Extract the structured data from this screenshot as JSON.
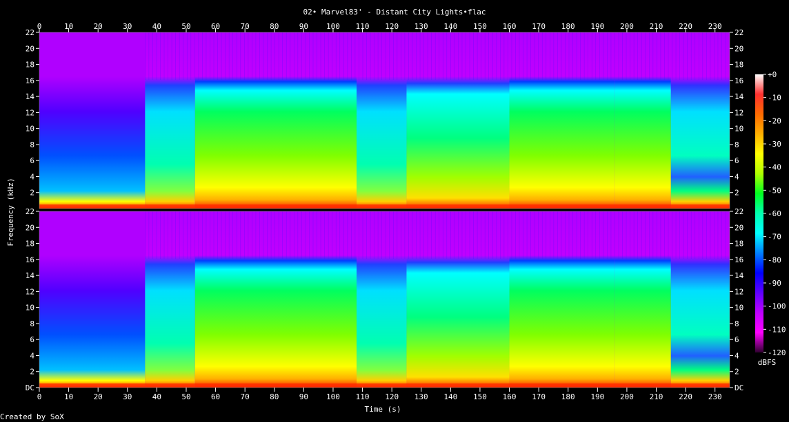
{
  "title": "02• Marvel83' - Distant City Lights•flac",
  "footer_credit": "Created by SoX",
  "chart_data": {
    "type": "heatmap",
    "title": "02• Marvel83' - Distant City Lights•flac",
    "xlabel": "Time (s)",
    "ylabel": "Frequency (kHz)",
    "x_ticks": [
      0,
      10,
      20,
      30,
      40,
      50,
      60,
      70,
      80,
      90,
      100,
      110,
      120,
      130,
      140,
      150,
      160,
      170,
      180,
      190,
      200,
      210,
      220,
      230
    ],
    "xlim": [
      0,
      235
    ],
    "y_ticks": [
      "DC",
      "2",
      "4",
      "6",
      "8",
      "10",
      "12",
      "14",
      "16",
      "18",
      "20",
      "22"
    ],
    "y_tick_values": [
      0,
      2,
      4,
      6,
      8,
      10,
      12,
      14,
      16,
      18,
      20,
      22
    ],
    "ylim": [
      0,
      22
    ],
    "channels": 2,
    "colorbar": {
      "label": "dBFS",
      "ticks": [
        "+0",
        "-10",
        "-20",
        "-30",
        "-40",
        "-50",
        "-60",
        "-70",
        "-80",
        "-90",
        "-100",
        "-110",
        "-120"
      ],
      "tick_values": [
        0,
        -10,
        -20,
        -30,
        -40,
        -50,
        -60,
        -70,
        -80,
        -90,
        -100,
        -110,
        -120
      ],
      "range": [
        -120,
        0
      ],
      "colors": [
        "#ffffff",
        "#ff3030",
        "#ff6a00",
        "#ffb000",
        "#ffff00",
        "#b0ff00",
        "#00ff20",
        "#00ffb0",
        "#00ffff",
        "#0080ff",
        "#0000ff",
        "#6000ff",
        "#c000ff",
        "#ff00ff",
        "#300030"
      ]
    },
    "segments": [
      {
        "t0": 0,
        "t1": 36,
        "cutoff_khz": 16,
        "level": "quiet"
      },
      {
        "t0": 36,
        "t1": 53,
        "cutoff_khz": 16,
        "level": "medium"
      },
      {
        "t0": 53,
        "t1": 108,
        "cutoff_khz": 16,
        "level": "loud"
      },
      {
        "t0": 108,
        "t1": 125,
        "cutoff_khz": 16,
        "level": "medium"
      },
      {
        "t0": 125,
        "t1": 160,
        "cutoff_khz": 16,
        "level": "medium-loud"
      },
      {
        "t0": 160,
        "t1": 196,
        "cutoff_khz": 16,
        "level": "loud"
      },
      {
        "t0": 196,
        "t1": 215,
        "cutoff_khz": 16,
        "level": "loud"
      },
      {
        "t0": 215,
        "t1": 235,
        "cutoff_khz": 16,
        "level": "fade"
      }
    ]
  }
}
